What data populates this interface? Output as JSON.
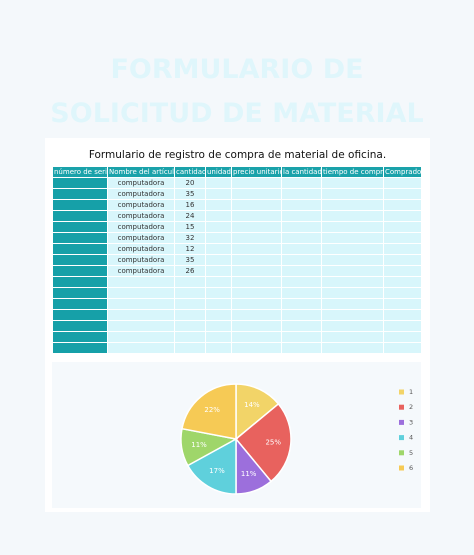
{
  "header": {
    "title": "FORMULARIO DE SOLICITUD DE MATERIAL DE OFICINA"
  },
  "table": {
    "caption": "Formulario de registro de compra de material de oficina.",
    "columns": [
      "número de serie",
      "Nombre del artículo",
      "cantidad",
      "unidad",
      "precio unitario",
      "la cantidad",
      "tiempo de compra",
      "Comprador"
    ],
    "rows": [
      [
        "computadora",
        20
      ],
      [
        "computadora",
        35
      ],
      [
        "computadora",
        16
      ],
      [
        "computadora",
        24
      ],
      [
        "computadora",
        15
      ],
      [
        "computadora",
        32
      ],
      [
        "computadora",
        12
      ],
      [
        "computadora",
        35
      ],
      [
        "computadora",
        26
      ]
    ]
  },
  "chart_data": {
    "type": "pie",
    "categories": [
      "1",
      "2",
      "3",
      "4",
      "5",
      "6"
    ],
    "values": [
      14,
      25,
      11,
      17,
      11,
      22
    ],
    "value_labels": [
      "14%",
      "25%",
      "11%",
      "17%",
      "11%",
      "22%"
    ],
    "colors": [
      "#f2d468",
      "#e8625e",
      "#9c6fdc",
      "#5fd0dc",
      "#9fd66a",
      "#f6ca55"
    ]
  }
}
